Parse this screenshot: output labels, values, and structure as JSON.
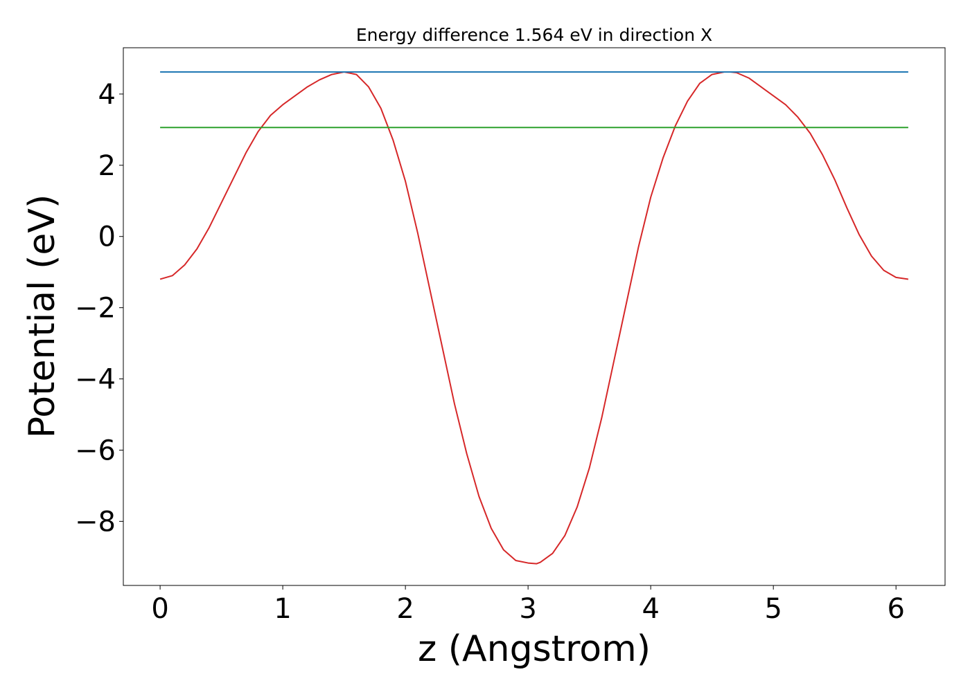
{
  "chart_data": {
    "type": "line",
    "title": "Energy difference 1.564 eV in direction X",
    "xlabel": "z (Angstrom)",
    "ylabel": "Potential (eV)",
    "xlim": [
      -0.3,
      6.4
    ],
    "ylim": [
      -9.8,
      5.3
    ],
    "xticks": [
      0,
      1,
      2,
      3,
      4,
      5,
      6
    ],
    "xtick_labels": [
      "0",
      "1",
      "2",
      "3",
      "4",
      "5",
      "6"
    ],
    "yticks": [
      -8,
      -6,
      -4,
      -2,
      0,
      2,
      4
    ],
    "ytick_labels": [
      "−8",
      "−6",
      "−4",
      "−2",
      "0",
      "2",
      "4"
    ],
    "grid": false,
    "legend": "none",
    "series": [
      {
        "color": "#d62728",
        "x": [
          0,
          0.1,
          0.2,
          0.3,
          0.4,
          0.5,
          0.6,
          0.7,
          0.8,
          0.9,
          1.0,
          1.1,
          1.2,
          1.3,
          1.4,
          1.5,
          1.6,
          1.7,
          1.8,
          1.9,
          2.0,
          2.1,
          2.2,
          2.3,
          2.4,
          2.5,
          2.6,
          2.7,
          2.8,
          2.9,
          3.0,
          3.07,
          3.1,
          3.2,
          3.3,
          3.4,
          3.5,
          3.6,
          3.7,
          3.8,
          3.9,
          4.0,
          4.1,
          4.2,
          4.3,
          4.4,
          4.5,
          4.6,
          4.65,
          4.7,
          4.8,
          4.9,
          5.0,
          5.1,
          5.2,
          5.3,
          5.4,
          5.5,
          5.6,
          5.7,
          5.8,
          5.9,
          6.0,
          6.1
        ],
        "y": [
          -1.2,
          -1.1,
          -0.8,
          -0.35,
          0.25,
          0.95,
          1.65,
          2.35,
          2.95,
          3.4,
          3.7,
          3.95,
          4.2,
          4.4,
          4.55,
          4.62,
          4.55,
          4.2,
          3.6,
          2.7,
          1.55,
          0.1,
          -1.5,
          -3.1,
          -4.7,
          -6.1,
          -7.3,
          -8.2,
          -8.8,
          -9.1,
          -9.17,
          -9.19,
          -9.15,
          -8.9,
          -8.4,
          -7.6,
          -6.5,
          -5.1,
          -3.5,
          -1.9,
          -0.3,
          1.1,
          2.2,
          3.1,
          3.8,
          4.3,
          4.55,
          4.62,
          4.62,
          4.6,
          4.45,
          4.2,
          3.95,
          3.7,
          3.35,
          2.9,
          2.3,
          1.6,
          0.8,
          0.05,
          -0.55,
          -0.95,
          -1.15,
          -1.2
        ]
      },
      {
        "color": "#1f77b4",
        "x": [
          0,
          6.1
        ],
        "y": [
          4.62,
          4.62
        ]
      },
      {
        "color": "#2ca02c",
        "x": [
          0,
          6.1
        ],
        "y": [
          3.06,
          3.06
        ]
      }
    ]
  }
}
